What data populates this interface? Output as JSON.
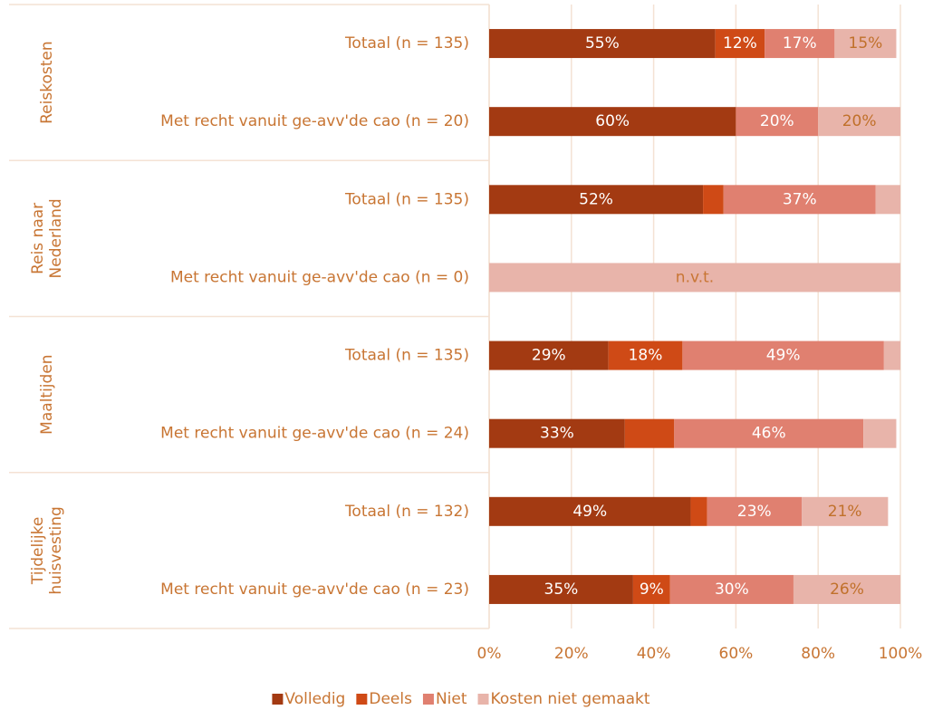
{
  "chart_data": {
    "type": "stacked-barh",
    "categories": [
      "Totaal (n = 135)",
      "Met recht vanuit ge-avv'de cao (n = 20)",
      "Totaal (n = 135)",
      "Met recht vanuit ge-avv'de cao (n = 0)",
      "Totaal (n = 135)",
      "Met recht vanuit ge-avv'de cao (n = 24)",
      "Totaal (n = 132)",
      "Met recht vanuit ge-avv'de cao (n = 23)"
    ],
    "groups": [
      [
        "Reiskosten"
      ],
      [
        "Reis naar",
        "Nederland"
      ],
      [
        "Maaltijden"
      ],
      [
        "Tijdelijke",
        "huisvesting"
      ]
    ],
    "series": [
      {
        "name": "Volledig",
        "color": "#a33a12",
        "label_color": "#ffffff",
        "values": [
          55,
          60,
          52,
          null,
          29,
          33,
          49,
          35
        ],
        "value_labels": [
          "55%",
          "60%",
          "52%",
          null,
          "29%",
          "33%",
          "49%",
          "35%"
        ]
      },
      {
        "name": "Deels",
        "color": "#cf4a16",
        "label_color": "#ffffff",
        "values": [
          12,
          0,
          5,
          null,
          18,
          12,
          4,
          9
        ],
        "value_labels": [
          "12%",
          null,
          null,
          null,
          "18%",
          null,
          null,
          "9%"
        ]
      },
      {
        "name": "Niet",
        "color": "#e08070",
        "label_color": "#ffffff",
        "values": [
          17,
          20,
          37,
          null,
          49,
          46,
          23,
          30
        ],
        "value_labels": [
          "17%",
          "20%",
          "37%",
          null,
          "49%",
          "46%",
          "23%",
          "30%"
        ]
      },
      {
        "name": "Kosten niet gemaakt",
        "color": "#e8b4aa",
        "label_color": "#c0702a",
        "values": [
          15,
          20,
          6,
          null,
          4,
          8,
          21,
          26
        ],
        "value_labels": [
          "15%",
          "20%",
          null,
          null,
          null,
          null,
          "21%",
          "26%"
        ]
      }
    ],
    "annotations": [
      {
        "row": 3,
        "text": "n.v.t."
      }
    ],
    "xlim": [
      0,
      100
    ],
    "xticks": [
      {
        "value": 0,
        "label": "0%"
      },
      {
        "value": 20,
        "label": "20%"
      },
      {
        "value": 40,
        "label": "40%"
      },
      {
        "value": 60,
        "label": "60%"
      },
      {
        "value": 80,
        "label": "80%"
      },
      {
        "value": 100,
        "label": "100%"
      }
    ],
    "grid": true,
    "legend": "bottom"
  }
}
